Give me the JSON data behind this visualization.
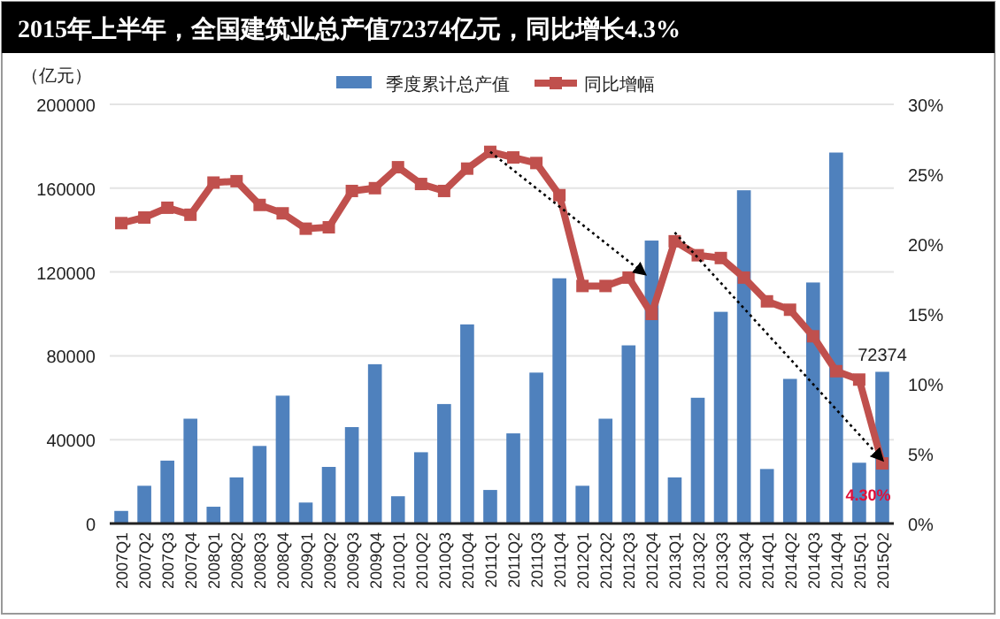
{
  "chart_data": {
    "type": "bar",
    "title": "2015年上半年，全国建筑业总产值72374亿元，同比增长4.3%",
    "ylabel": "（亿元）",
    "categories": [
      "2007Q1",
      "2007Q2",
      "2007Q3",
      "2007Q4",
      "2008Q1",
      "2008Q2",
      "2008Q3",
      "2008Q4",
      "2009Q1",
      "2009Q2",
      "2009Q3",
      "2009Q4",
      "2010Q1",
      "2010Q2",
      "2010Q3",
      "2010Q4",
      "2011Q1",
      "2011Q2",
      "2011Q3",
      "2011Q4",
      "2012Q1",
      "2012Q2",
      "2012Q3",
      "2012Q4",
      "2013Q1",
      "2013Q2",
      "2013Q3",
      "2013Q4",
      "2014Q1",
      "2014Q2",
      "2014Q3",
      "2014Q4",
      "2015Q1",
      "2015Q2"
    ],
    "series": [
      {
        "name": "季度累计总产值",
        "color": "#4f81bd",
        "values": [
          6000,
          18000,
          30000,
          50000,
          8000,
          22000,
          37000,
          61000,
          10000,
          27000,
          46000,
          76000,
          13000,
          34000,
          57000,
          95000,
          16000,
          43000,
          72000,
          117000,
          18000,
          50000,
          85000,
          135000,
          22000,
          60000,
          101000,
          159000,
          26000,
          69000,
          115000,
          177000,
          29000,
          72374
        ]
      },
      {
        "name": "同比增幅",
        "type": "line",
        "axis": "y2",
        "color": "#c0504d",
        "marker": "square",
        "values": [
          21.5,
          21.9,
          22.6,
          22.1,
          24.4,
          24.5,
          22.8,
          22.2,
          21.1,
          21.2,
          23.8,
          24.0,
          25.5,
          24.3,
          23.8,
          25.4,
          26.6,
          26.2,
          25.8,
          23.5,
          17.0,
          17.0,
          17.6,
          15.0,
          20.2,
          19.2,
          19.0,
          17.6,
          15.9,
          15.3,
          13.4,
          10.9,
          10.3,
          4.3
        ]
      }
    ],
    "ylim": [
      0,
      200000
    ],
    "yticks": [
      0,
      40000,
      80000,
      120000,
      160000,
      200000
    ],
    "y2lim": [
      0,
      30
    ],
    "y2ticks": [
      {
        "value": 0,
        "label": "0%"
      },
      {
        "value": 5,
        "label": "5%"
      },
      {
        "value": 10,
        "label": "10%"
      },
      {
        "value": 15,
        "label": "15%"
      },
      {
        "value": 20,
        "label": "20%"
      },
      {
        "value": 25,
        "label": "25%"
      },
      {
        "value": 30,
        "label": "30%"
      }
    ],
    "grid": "y",
    "legend": "top",
    "annotations": [
      {
        "text": "72374",
        "x": "2015Q2",
        "y": 72374
      },
      {
        "text": "4.30%",
        "x": "2015Q2",
        "y": 4.3
      }
    ]
  }
}
